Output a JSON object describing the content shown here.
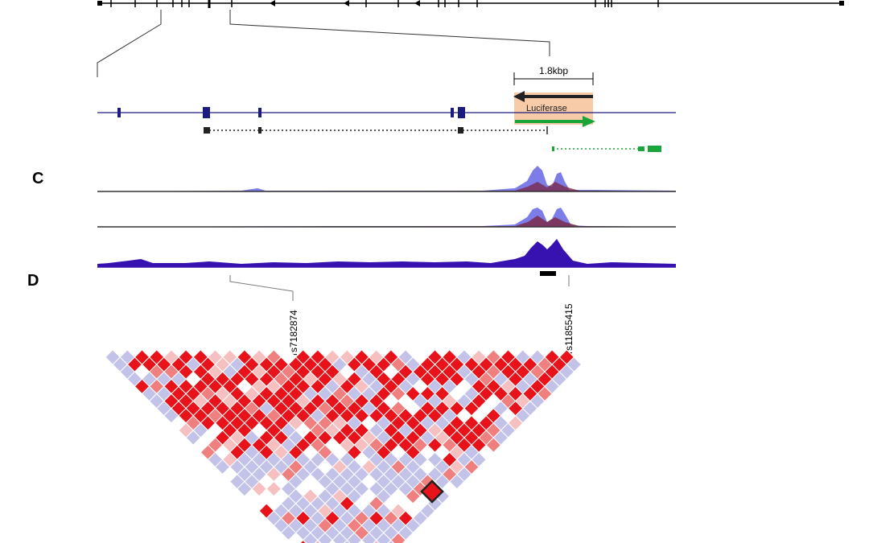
{
  "panels": {
    "c_label": "C",
    "d_label": "D"
  },
  "construct": {
    "scale_label": "1.8kbp",
    "reporter_label": "Luciferase"
  },
  "snps": {
    "left": "rs7182874",
    "right": "rs11855415"
  },
  "colors": {
    "gene_model": "#1a1a80",
    "reporter_fill": "#f7cba8",
    "forward_arrow": "#1aa53a",
    "reverse_arrow": "#222222",
    "ld_high": "#e8131a",
    "ld_mid": "#f07f7f",
    "ld_low": "#f7c0c0",
    "ld_none": "#ffffff",
    "ld_lod_low": "#c3c3ea",
    "chip_blue": "#6b6be6",
    "chip_maroon": "#7a2440",
    "dnase": "#3812b0"
  }
}
